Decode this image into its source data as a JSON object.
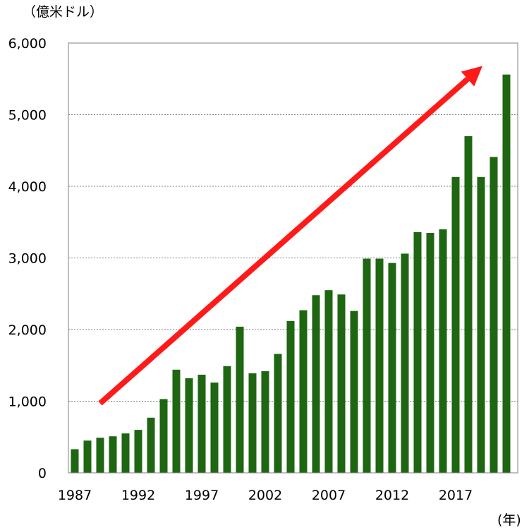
{
  "chart_data": {
    "type": "bar",
    "ylabel": "（億米ドル）",
    "xlabel": "(年)",
    "ylim": [
      0,
      6000
    ],
    "yticks": [
      0,
      1000,
      2000,
      3000,
      4000,
      5000,
      6000
    ],
    "ytick_labels": [
      "0",
      "1,000",
      "2,000",
      "3,000",
      "4,000",
      "5,000",
      "6,000"
    ],
    "xtick_labels": [
      "1987",
      "1992",
      "1997",
      "2002",
      "2007",
      "2012",
      "2017"
    ],
    "xtick_years": [
      1987,
      1992,
      1997,
      2002,
      2007,
      2012,
      2017
    ],
    "grid": "horizontal-dotted",
    "bar_color": "#1e6612",
    "arrow_color": "#ff1a1a",
    "categories": [
      1987,
      1988,
      1989,
      1990,
      1991,
      1992,
      1993,
      1994,
      1995,
      1996,
      1997,
      1998,
      1999,
      2000,
      2001,
      2002,
      2003,
      2004,
      2005,
      2006,
      2007,
      2008,
      2009,
      2010,
      2011,
      2012,
      2013,
      2014,
      2015,
      2016,
      2017,
      2018,
      2019,
      2020,
      2021
    ],
    "values": [
      330,
      450,
      490,
      510,
      550,
      600,
      770,
      1030,
      1440,
      1320,
      1370,
      1260,
      1490,
      2040,
      1390,
      1420,
      1660,
      2120,
      2270,
      2480,
      2550,
      2490,
      2260,
      2990,
      2990,
      2930,
      3060,
      3360,
      3350,
      3400,
      4130,
      4700,
      4130,
      4410,
      5560
    ],
    "trend_arrow": {
      "from": [
        1989,
        970
      ],
      "to": [
        2020,
        5680
      ]
    }
  }
}
